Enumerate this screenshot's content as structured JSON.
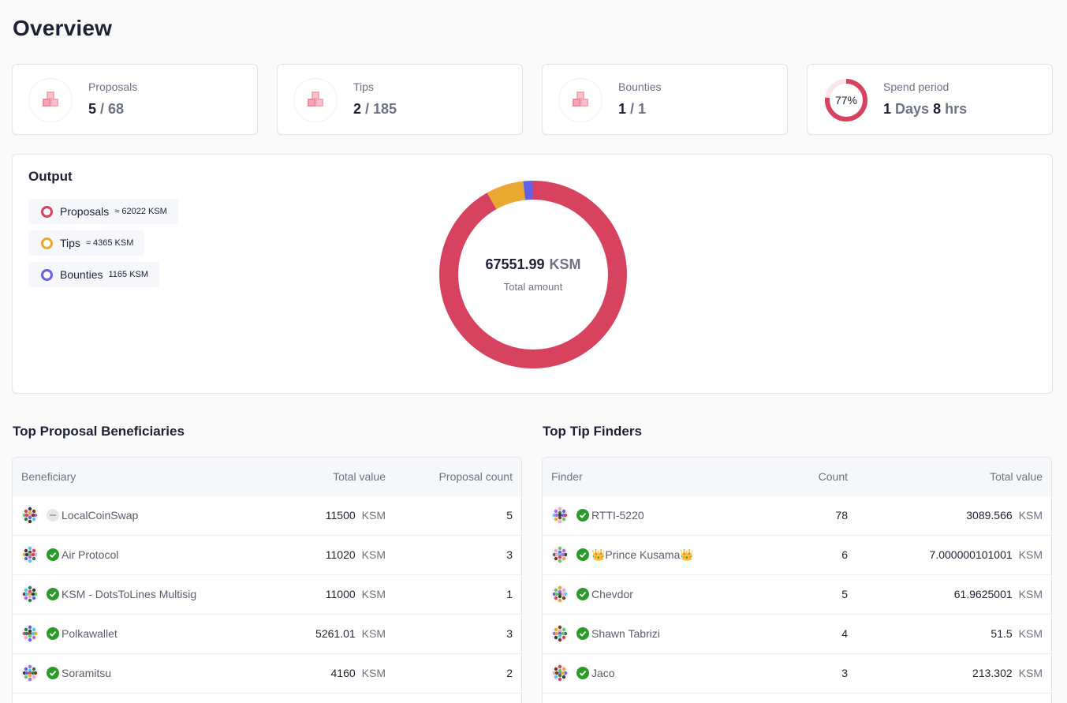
{
  "title": "Overview",
  "cards": [
    {
      "label": "Proposals",
      "active": "5",
      "total": "/ 68",
      "icon": "cubes-icon"
    },
    {
      "label": "Tips",
      "active": "2",
      "total": "/ 185",
      "icon": "cubes-icon"
    },
    {
      "label": "Bounties",
      "active": "1",
      "total": "/ 1",
      "icon": "cubes-icon"
    },
    {
      "label": "Spend period",
      "percent_text": "77%",
      "percent": 0.77,
      "days": "1",
      "days_unit": "Days",
      "hrs": "8",
      "hrs_unit": "hrs"
    }
  ],
  "output": {
    "title": "Output",
    "legend": [
      {
        "name": "Proposals",
        "value": "≈ 62022 KSM",
        "color": "#d7425e"
      },
      {
        "name": "Tips",
        "value": "≈ 4365 KSM",
        "color": "#e9a930"
      },
      {
        "name": "Bounties",
        "value": "1165 KSM",
        "color": "#6361e6"
      }
    ],
    "total": "67551.99",
    "unit": "KSM",
    "total_label": "Total amount",
    "slices": [
      {
        "name": "Proposals",
        "value": 62022,
        "color": "#d7425e"
      },
      {
        "name": "Tips",
        "value": 4365,
        "color": "#e9a930"
      },
      {
        "name": "Bounties",
        "value": 1165,
        "color": "#6361e6"
      }
    ]
  },
  "beneficiaries": {
    "title": "Top Proposal Beneficiaries",
    "headers": [
      "Beneficiary",
      "Total value",
      "Proposal count"
    ],
    "rows": [
      {
        "name": "LocalCoinSwap",
        "value": "11500",
        "unit": "KSM",
        "count": "5",
        "verified": false
      },
      {
        "name": "Air Protocol",
        "value": "11020",
        "unit": "KSM",
        "count": "3",
        "verified": true
      },
      {
        "name": "KSM - DotsToLines Multisig",
        "value": "11000",
        "unit": "KSM",
        "count": "1",
        "verified": true
      },
      {
        "name": "Polkawallet",
        "value": "5261.01",
        "unit": "KSM",
        "count": "3",
        "verified": true
      },
      {
        "name": "Soramitsu",
        "value": "4160",
        "unit": "KSM",
        "count": "2",
        "verified": true
      }
    ]
  },
  "finders": {
    "title": "Top Tip Finders",
    "headers": [
      "Finder",
      "Count",
      "Total value"
    ],
    "rows": [
      {
        "name": "RTTI-5220",
        "count": "78",
        "value": "3089.566",
        "unit": "KSM"
      },
      {
        "name": "👑Prince Kusama👑",
        "count": "6",
        "value": "7.000000101001",
        "unit": "KSM"
      },
      {
        "name": "Chevdor",
        "count": "5",
        "value": "61.9625001",
        "unit": "KSM"
      },
      {
        "name": "Shawn Tabrizi",
        "count": "4",
        "value": "51.5",
        "unit": "KSM"
      },
      {
        "name": "Jaco",
        "count": "3",
        "value": "213.302",
        "unit": "KSM"
      }
    ]
  }
}
